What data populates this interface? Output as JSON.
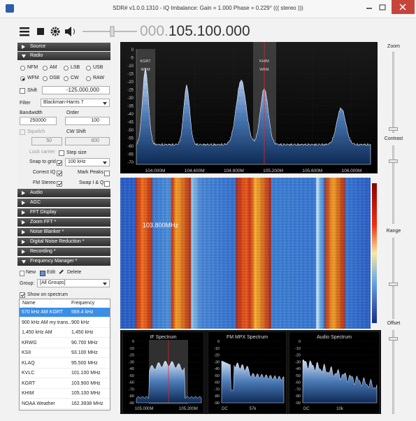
{
  "window": {
    "title": "SDR# v1.0.0.1310 - IQ Imbalance: Gain = 1.000 Phase = 0.229° ((( stereo )))"
  },
  "toolbar": {
    "frequency_prefix": "000.",
    "frequency": "105.100.000"
  },
  "sidebar": {
    "top_sections": [
      "Source",
      "Radio"
    ],
    "radio": {
      "modes": [
        "NFM",
        "AM",
        "LSB",
        "USB",
        "WFM",
        "DSB",
        "CW",
        "RAW"
      ],
      "shift_label": "Shift",
      "shift_value": "-125,000,000",
      "filter_label": "Filter",
      "filter_value": "Blackman-Harris 7",
      "bandwidth_label": "Bandwidth",
      "order_label": "Order",
      "bandwidth_value": "250000",
      "order_value": "100",
      "squelch_label": "Squelch",
      "cw_shift_label": "CW Shift",
      "squelch_value": "50",
      "cw_shift_value": "600",
      "lock_carrier": "Lock carrier",
      "step_size_label": "Step size",
      "snap_to_grid": "Snap to grid",
      "step_size_value": "100 kHz",
      "correct_iq": "Correct IQ",
      "mark_peaks": "Mark Peaks",
      "fm_stereo": "FM Stereo",
      "swap_iq": "Swap I & Q"
    },
    "panels": [
      "Audio",
      "AGC",
      "FFT Display",
      "Zoom FFT *",
      "Noise Blanker *",
      "Digital Noise Reduction *",
      "Recording *",
      "Frequency Manager *"
    ],
    "frequency_manager": {
      "new": "New",
      "edit": "Edit",
      "delete": "Delete",
      "group_label": "Group:",
      "group_value": "[All Groups]",
      "show_on_spectrum": "Show on spectrum",
      "columns": [
        "Name",
        "Frequency"
      ],
      "rows": [
        [
          "570 kHz AM KGRT",
          "569.4 kHz"
        ],
        [
          "900 kHz AM my trans...",
          "900 kHz"
        ],
        [
          "1,450 kHz AM",
          "1,450 kHz"
        ],
        [
          "KRWG",
          "90.700 MHz"
        ],
        [
          "KSII",
          "93.100 MHz"
        ],
        [
          "KLAQ",
          "95.500 MHz"
        ],
        [
          "KVLC",
          "101.100 MHz"
        ],
        [
          "KGRT",
          "103.900 MHz"
        ],
        [
          "KHIM",
          "105.100 MHz"
        ],
        [
          "NOAA Weather",
          "162.3938 MHz"
        ]
      ]
    }
  },
  "spectrum": {
    "yticks": [
      "0",
      "-5",
      "-10",
      "-15",
      "-20",
      "-25",
      "-30",
      "-35",
      "-40",
      "-45",
      "-50",
      "-55",
      "-60",
      "-65",
      "-70"
    ],
    "xticks": [
      "104.000M",
      "104.400M",
      "104.800M",
      "105.200M",
      "105.600M",
      "106.000M"
    ],
    "markers": [
      {
        "name": "KGRT",
        "mode": "WFM"
      },
      {
        "name": "KHIM",
        "mode": "WFM"
      }
    ]
  },
  "waterfall": {
    "label": "103.800MHz"
  },
  "small_spectra": [
    {
      "title": "IF Spectrum",
      "yticks": [
        "0",
        "-10",
        "-20",
        "-30",
        "-40",
        "-50",
        "-60",
        "-70",
        "-80",
        "-90"
      ],
      "xticks": [
        "105.000M",
        "105.200M"
      ]
    },
    {
      "title": "FM MPX Spectrum",
      "yticks": [
        "0",
        "-10",
        "-20",
        "-30",
        "-40",
        "-50",
        "-60",
        "-70",
        "-80",
        "-90"
      ],
      "xticks": [
        "DC",
        "57k"
      ]
    },
    {
      "title": "Audio Spectrum",
      "yticks": [
        "0",
        "-10",
        "-20",
        "-30",
        "-40",
        "-50",
        "-60",
        "-70",
        "-80",
        "-90"
      ],
      "xticks": [
        "DC",
        "10k"
      ]
    }
  ],
  "controls": {
    "zoom": "Zoom",
    "contrast": "Contrast",
    "range": "Range",
    "offset": "Offset"
  }
}
